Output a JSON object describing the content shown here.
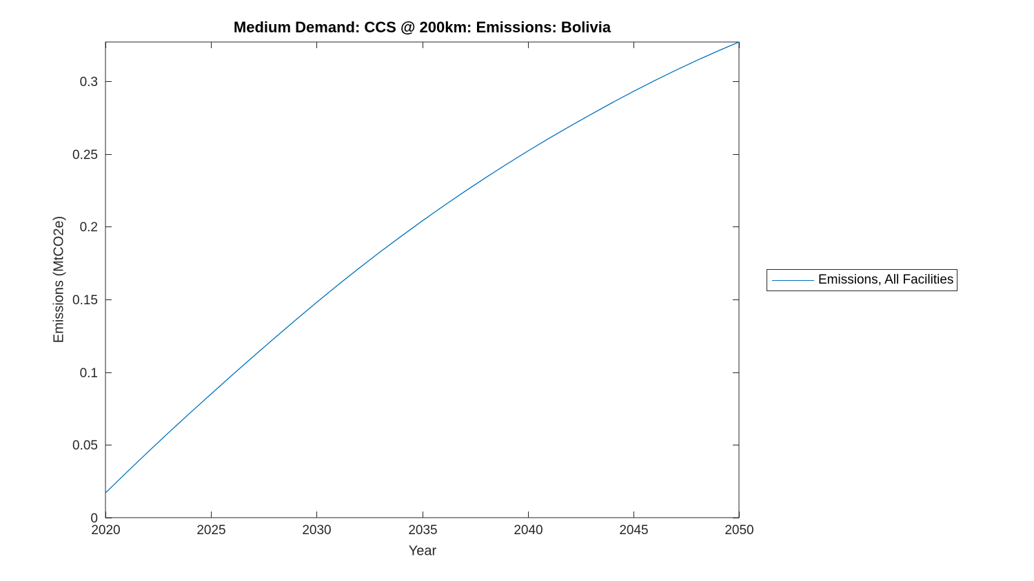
{
  "figure": {
    "background": "#ffffff",
    "axis_color": "#262626",
    "title_color": "#000000"
  },
  "chart_data": {
    "type": "line",
    "title": "Medium Demand: CCS @ 200km: Emissions: Bolivia",
    "xlabel": "Year",
    "ylabel": "Emissions (MtCO2e)",
    "xlim": [
      2020,
      2050
    ],
    "ylim": [
      0,
      0.327
    ],
    "xticks": [
      "2020",
      "2025",
      "2030",
      "2035",
      "2040",
      "2045",
      "2050"
    ],
    "yticks": [
      "0",
      "0.05",
      "0.1",
      "0.15",
      "0.2",
      "0.25",
      "0.3"
    ],
    "grid": false,
    "box": true,
    "tick_direction": "in",
    "legend": {
      "position": "outside-right",
      "entries": [
        {
          "label": "Emissions, All Facilities",
          "color": "#0072BD"
        }
      ]
    },
    "series": [
      {
        "name": "Emissions, All Facilities",
        "color": "#0072BD",
        "x": [
          2020,
          2021,
          2022,
          2023,
          2024,
          2025,
          2026,
          2027,
          2028,
          2029,
          2030,
          2031,
          2032,
          2033,
          2034,
          2035,
          2036,
          2037,
          2038,
          2039,
          2040,
          2041,
          2042,
          2043,
          2044,
          2045,
          2046,
          2047,
          2048,
          2049,
          2050
        ],
        "y": [
          0.017,
          0.0311,
          0.045,
          0.0586,
          0.0719,
          0.085,
          0.098,
          0.1108,
          0.1234,
          0.1358,
          0.148,
          0.1599,
          0.1714,
          0.1826,
          0.1934,
          0.204,
          0.2142,
          0.2241,
          0.2337,
          0.243,
          0.252,
          0.2607,
          0.2691,
          0.2773,
          0.2853,
          0.293,
          0.3004,
          0.3075,
          0.3143,
          0.3208,
          0.327
        ]
      }
    ]
  }
}
